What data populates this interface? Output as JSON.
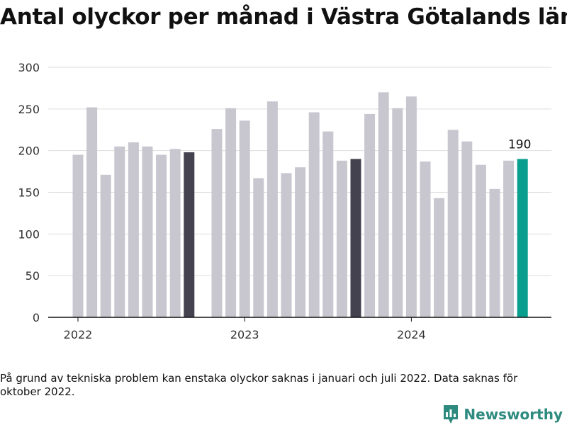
{
  "title": "Antal olyckor per månad i Västra Götalands län",
  "footnote": "På grund av tekniska problem kan enstaka olyckor saknas i januari och juli 2022. Data saknas för oktober 2022.",
  "brand": {
    "name": "Newsworthy",
    "logo_icon": "bar-chart-speech-bubble-icon"
  },
  "chart_data": {
    "type": "bar",
    "title": "Antal olyckor per månad i Västra Götalands län",
    "xlabel": "",
    "ylabel": "",
    "ylim": [
      0,
      300
    ],
    "yticks": [
      "0",
      "50",
      "100",
      "150",
      "200",
      "250",
      "300"
    ],
    "xticks": [
      {
        "label": "2022",
        "category": "2022-01"
      },
      {
        "label": "2023",
        "category": "2023-01"
      },
      {
        "label": "2024",
        "category": "2024-01"
      }
    ],
    "grid": true,
    "categories": [
      "2022-01",
      "2022-02",
      "2022-03",
      "2022-04",
      "2022-05",
      "2022-06",
      "2022-07",
      "2022-08",
      "2022-09",
      "2022-10",
      "2022-11",
      "2022-12",
      "2023-01",
      "2023-02",
      "2023-03",
      "2023-04",
      "2023-05",
      "2023-06",
      "2023-07",
      "2023-08",
      "2023-09",
      "2023-10",
      "2023-11",
      "2023-12",
      "2024-01",
      "2024-02",
      "2024-03",
      "2024-04",
      "2024-05",
      "2024-06",
      "2024-07",
      "2024-08",
      "2024-09"
    ],
    "values": [
      195,
      252,
      171,
      205,
      210,
      205,
      195,
      202,
      198,
      null,
      226,
      251,
      236,
      167,
      259,
      173,
      180,
      246,
      223,
      188,
      190,
      244,
      270,
      251,
      265,
      187,
      143,
      225,
      211,
      183,
      154,
      188,
      190
    ],
    "bar_colors": [
      "#c8c7d0",
      "#c8c7d0",
      "#c8c7d0",
      "#c8c7d0",
      "#c8c7d0",
      "#c8c7d0",
      "#c8c7d0",
      "#c8c7d0",
      "#43424e",
      null,
      "#c8c7d0",
      "#c8c7d0",
      "#c8c7d0",
      "#c8c7d0",
      "#c8c7d0",
      "#c8c7d0",
      "#c8c7d0",
      "#c8c7d0",
      "#c8c7d0",
      "#c8c7d0",
      "#43424e",
      "#c8c7d0",
      "#c8c7d0",
      "#c8c7d0",
      "#c8c7d0",
      "#c8c7d0",
      "#c8c7d0",
      "#c8c7d0",
      "#c8c7d0",
      "#c8c7d0",
      "#c8c7d0",
      "#c8c7d0",
      "#0a9e8f"
    ],
    "annotation": {
      "category": "2024-09",
      "text": "190"
    },
    "colors": {
      "default": "#c8c7d0",
      "highlight_prev_years": "#43424e",
      "latest": "#0a9e8f",
      "axis": "#111111",
      "grid": "#dddddd",
      "brand": "#2d8a7e"
    }
  }
}
